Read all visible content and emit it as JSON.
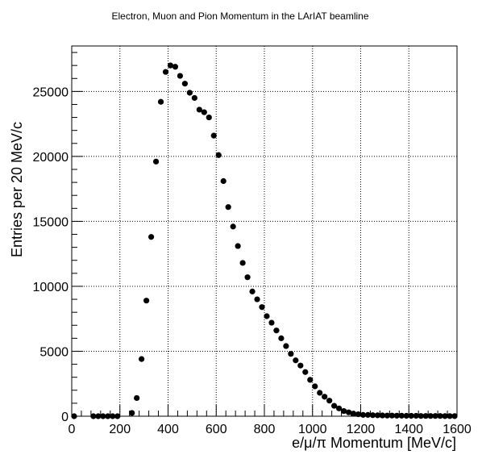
{
  "chart_data": {
    "type": "scatter",
    "title": "Electron, Muon and Pion Momentum in the LArIAT beamline",
    "xlabel": "e/μ/π Momentum [MeV/c]",
    "ylabel": "Entries per 20 MeV/c",
    "xlim": [
      0,
      1600
    ],
    "ylim": [
      0,
      28500
    ],
    "xticks": [
      0,
      200,
      400,
      600,
      800,
      1000,
      1200,
      1400,
      1600
    ],
    "yticks": [
      0,
      5000,
      10000,
      15000,
      20000,
      25000
    ],
    "xtick_labels": [
      "0",
      "200",
      "400",
      "600",
      "800",
      "1000",
      "1200",
      "1400",
      "1600"
    ],
    "ytick_labels": [
      "0",
      "5000",
      "10000",
      "15000",
      "20000",
      "25000"
    ],
    "grid": true,
    "marker_color": "#000000",
    "series": [
      {
        "x": [
          10,
          90,
          110,
          130,
          150,
          170,
          190,
          250,
          270,
          290,
          310,
          330,
          350,
          370,
          390,
          410,
          430,
          450,
          470,
          490,
          510,
          530,
          550,
          570,
          590,
          610,
          630,
          650,
          670,
          690,
          710,
          730,
          750,
          770,
          790,
          810,
          830,
          850,
          870,
          890,
          910,
          930,
          950,
          970,
          990,
          1010,
          1030,
          1050,
          1070,
          1090,
          1110,
          1130,
          1150,
          1170,
          1190,
          1210,
          1230,
          1250,
          1270,
          1290,
          1310,
          1330,
          1350,
          1370,
          1390,
          1410,
          1430,
          1450,
          1470,
          1490,
          1510,
          1530,
          1550,
          1570,
          1590
        ],
        "y": [
          0,
          0,
          0,
          0,
          0,
          0,
          0,
          250,
          1400,
          4400,
          8900,
          13800,
          19600,
          24200,
          26500,
          27000,
          26900,
          26200,
          25600,
          24900,
          24500,
          23600,
          23400,
          23000,
          21600,
          20100,
          18100,
          16100,
          14600,
          13100,
          11800,
          10700,
          9600,
          9000,
          8400,
          7700,
          7200,
          6600,
          6000,
          5400,
          4800,
          4300,
          3900,
          3400,
          2800,
          2300,
          1800,
          1500,
          1200,
          800,
          600,
          400,
          300,
          200,
          150,
          100,
          100,
          80,
          70,
          60,
          50,
          50,
          40,
          40,
          30,
          30,
          30,
          20,
          20,
          20,
          20,
          20,
          10,
          10,
          10
        ]
      }
    ]
  }
}
